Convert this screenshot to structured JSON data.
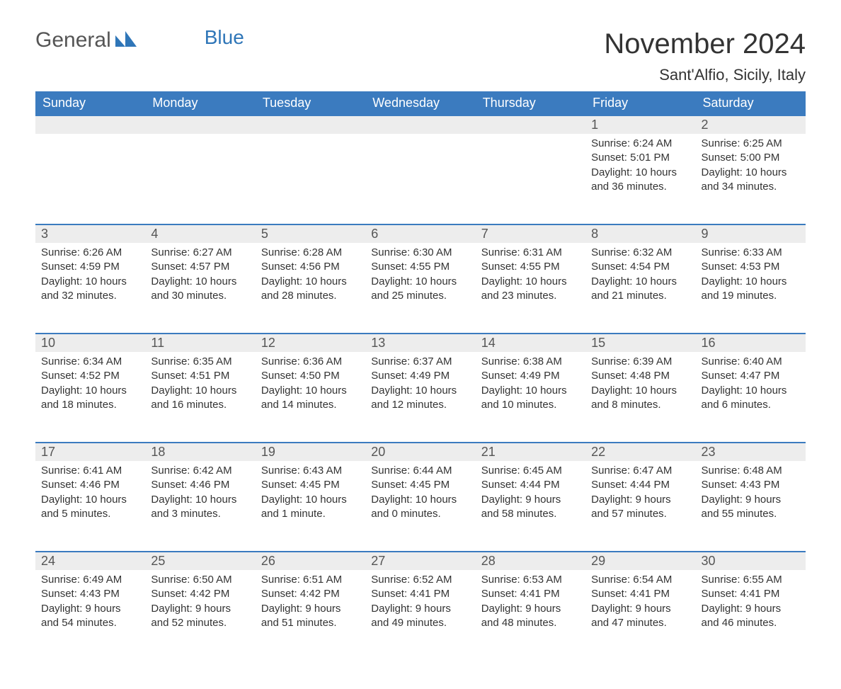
{
  "logo": {
    "text_general": "General",
    "text_blue": "Blue"
  },
  "header": {
    "month_title": "November 2024",
    "location": "Sant'Alfio, Sicily, Italy"
  },
  "colors": {
    "header_bg": "#3b7bbf",
    "header_text": "#ffffff",
    "day_num_bg": "#ededed",
    "row_border": "#3b7bbf",
    "text": "#333333",
    "logo_blue": "#2f76b8",
    "logo_mark": "#2f76b8"
  },
  "layout": {
    "columns": 7,
    "cell_fontsize": 15,
    "daynum_fontsize": 18,
    "header_fontsize": 18
  },
  "weekdays": [
    "Sunday",
    "Monday",
    "Tuesday",
    "Wednesday",
    "Thursday",
    "Friday",
    "Saturday"
  ],
  "weeks": [
    [
      null,
      null,
      null,
      null,
      null,
      {
        "n": "1",
        "sr": "6:24 AM",
        "ss": "5:01 PM",
        "dl": "10 hours and 36 minutes."
      },
      {
        "n": "2",
        "sr": "6:25 AM",
        "ss": "5:00 PM",
        "dl": "10 hours and 34 minutes."
      }
    ],
    [
      {
        "n": "3",
        "sr": "6:26 AM",
        "ss": "4:59 PM",
        "dl": "10 hours and 32 minutes."
      },
      {
        "n": "4",
        "sr": "6:27 AM",
        "ss": "4:57 PM",
        "dl": "10 hours and 30 minutes."
      },
      {
        "n": "5",
        "sr": "6:28 AM",
        "ss": "4:56 PM",
        "dl": "10 hours and 28 minutes."
      },
      {
        "n": "6",
        "sr": "6:30 AM",
        "ss": "4:55 PM",
        "dl": "10 hours and 25 minutes."
      },
      {
        "n": "7",
        "sr": "6:31 AM",
        "ss": "4:55 PM",
        "dl": "10 hours and 23 minutes."
      },
      {
        "n": "8",
        "sr": "6:32 AM",
        "ss": "4:54 PM",
        "dl": "10 hours and 21 minutes."
      },
      {
        "n": "9",
        "sr": "6:33 AM",
        "ss": "4:53 PM",
        "dl": "10 hours and 19 minutes."
      }
    ],
    [
      {
        "n": "10",
        "sr": "6:34 AM",
        "ss": "4:52 PM",
        "dl": "10 hours and 18 minutes."
      },
      {
        "n": "11",
        "sr": "6:35 AM",
        "ss": "4:51 PM",
        "dl": "10 hours and 16 minutes."
      },
      {
        "n": "12",
        "sr": "6:36 AM",
        "ss": "4:50 PM",
        "dl": "10 hours and 14 minutes."
      },
      {
        "n": "13",
        "sr": "6:37 AM",
        "ss": "4:49 PM",
        "dl": "10 hours and 12 minutes."
      },
      {
        "n": "14",
        "sr": "6:38 AM",
        "ss": "4:49 PM",
        "dl": "10 hours and 10 minutes."
      },
      {
        "n": "15",
        "sr": "6:39 AM",
        "ss": "4:48 PM",
        "dl": "10 hours and 8 minutes."
      },
      {
        "n": "16",
        "sr": "6:40 AM",
        "ss": "4:47 PM",
        "dl": "10 hours and 6 minutes."
      }
    ],
    [
      {
        "n": "17",
        "sr": "6:41 AM",
        "ss": "4:46 PM",
        "dl": "10 hours and 5 minutes."
      },
      {
        "n": "18",
        "sr": "6:42 AM",
        "ss": "4:46 PM",
        "dl": "10 hours and 3 minutes."
      },
      {
        "n": "19",
        "sr": "6:43 AM",
        "ss": "4:45 PM",
        "dl": "10 hours and 1 minute."
      },
      {
        "n": "20",
        "sr": "6:44 AM",
        "ss": "4:45 PM",
        "dl": "10 hours and 0 minutes."
      },
      {
        "n": "21",
        "sr": "6:45 AM",
        "ss": "4:44 PM",
        "dl": "9 hours and 58 minutes."
      },
      {
        "n": "22",
        "sr": "6:47 AM",
        "ss": "4:44 PM",
        "dl": "9 hours and 57 minutes."
      },
      {
        "n": "23",
        "sr": "6:48 AM",
        "ss": "4:43 PM",
        "dl": "9 hours and 55 minutes."
      }
    ],
    [
      {
        "n": "24",
        "sr": "6:49 AM",
        "ss": "4:43 PM",
        "dl": "9 hours and 54 minutes."
      },
      {
        "n": "25",
        "sr": "6:50 AM",
        "ss": "4:42 PM",
        "dl": "9 hours and 52 minutes."
      },
      {
        "n": "26",
        "sr": "6:51 AM",
        "ss": "4:42 PM",
        "dl": "9 hours and 51 minutes."
      },
      {
        "n": "27",
        "sr": "6:52 AM",
        "ss": "4:41 PM",
        "dl": "9 hours and 49 minutes."
      },
      {
        "n": "28",
        "sr": "6:53 AM",
        "ss": "4:41 PM",
        "dl": "9 hours and 48 minutes."
      },
      {
        "n": "29",
        "sr": "6:54 AM",
        "ss": "4:41 PM",
        "dl": "9 hours and 47 minutes."
      },
      {
        "n": "30",
        "sr": "6:55 AM",
        "ss": "4:41 PM",
        "dl": "9 hours and 46 minutes."
      }
    ]
  ],
  "labels": {
    "sunrise": "Sunrise",
    "sunset": "Sunset",
    "daylight": "Daylight"
  }
}
